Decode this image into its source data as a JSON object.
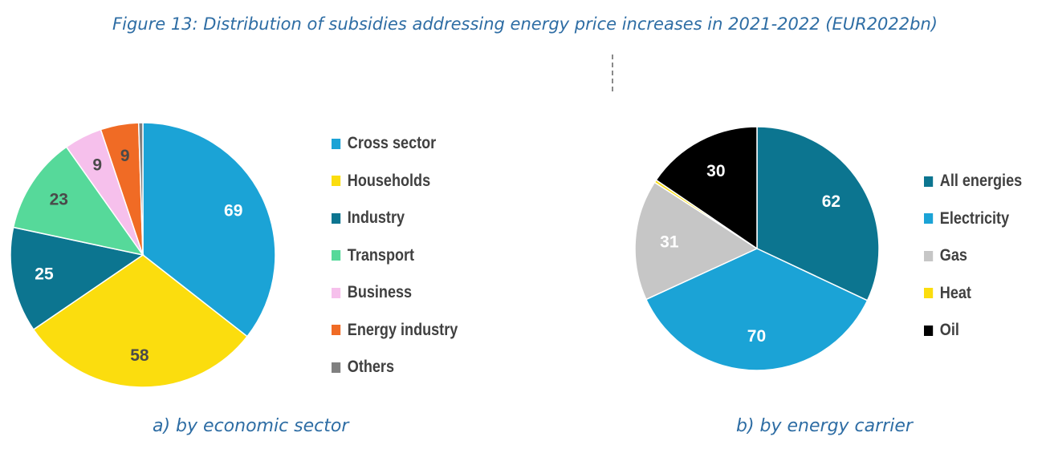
{
  "title": "Figure 13: Distribution of subsidies addressing energy price increases in 2021-2022 (EUR2022bn)",
  "chart_data": [
    {
      "type": "pie",
      "caption": "a) by economic sector",
      "start_angle_deg": 0,
      "direction": "clockwise",
      "slices": [
        {
          "label": "Cross sector",
          "value": 69,
          "value_label": "69",
          "color": "#1ba3d6",
          "label_color": "#ffffff"
        },
        {
          "label": "Households",
          "value": 58,
          "value_label": "58",
          "color": "#fbdd0e",
          "label_color": "#4a4a4a"
        },
        {
          "label": "Industry",
          "value": 25,
          "value_label": "25",
          "color": "#0c7590",
          "label_color": "#ffffff"
        },
        {
          "label": "Transport",
          "value": 23,
          "value_label": "23",
          "color": "#56d99a",
          "label_color": "#4a4a4a"
        },
        {
          "label": "Business",
          "value": 9,
          "value_label": "9",
          "color": "#f6c0ec",
          "label_color": "#4a4a4a"
        },
        {
          "label": "Energy industry",
          "value": 9,
          "value_label": "9",
          "color": "#f06b25",
          "label_color": "#4a4a4a"
        },
        {
          "label": "Others",
          "value": 1,
          "value_label": "",
          "color": "#808080",
          "label_color": "#4a4a4a"
        }
      ]
    },
    {
      "type": "pie",
      "caption": "b) by energy carrier",
      "start_angle_deg": 0,
      "direction": "clockwise",
      "slices": [
        {
          "label": "All energies",
          "value": 62,
          "value_label": "62",
          "color": "#0c7590",
          "label_color": "#ffffff"
        },
        {
          "label": "Electricity",
          "value": 70,
          "value_label": "70",
          "color": "#1ba3d6",
          "label_color": "#ffffff"
        },
        {
          "label": "Gas",
          "value": 31,
          "value_label": "31",
          "color": "#c6c6c6",
          "label_color": "#ffffff"
        },
        {
          "label": "Heat",
          "value": 0.7,
          "value_label": "",
          "color": "#fbdd0e",
          "label_color": "#4a4a4a"
        },
        {
          "label": "Oil",
          "value": 30,
          "value_label": "30",
          "color": "#000000",
          "label_color": "#ffffff"
        }
      ]
    }
  ]
}
